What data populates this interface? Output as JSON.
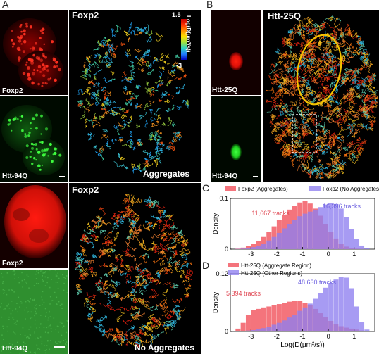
{
  "figure": {
    "panels": {
      "A": {
        "letter": "A",
        "top": {
          "small_top_label": "Foxp2",
          "small_bottom_label": "Htt-94Q",
          "track_title": "Foxp2",
          "condition_label": "Aggregates",
          "colorbar": {
            "max": "1.5",
            "min": "-3",
            "label": "Log(D(μm²/s))"
          }
        },
        "bottom": {
          "small_top_label": "Foxp2",
          "small_bottom_label": "Htt-94Q",
          "track_title": "Foxp2",
          "condition_label": "No Aggregates"
        }
      },
      "B": {
        "letter": "B",
        "small_top_label": "Htt-25Q",
        "small_bottom_label": "Htt-94Q",
        "track_title": "Htt-25Q"
      },
      "C": {
        "letter": "C"
      },
      "D": {
        "letter": "D"
      }
    },
    "colors": {
      "foxp2_red": "#e8201a",
      "htt_green": "#19d119",
      "hist_red": "#f4747c",
      "hist_blue": "#8e7ff0",
      "overlap_purple": "#7a3ea8",
      "ellipse_yellow": "#f5c400"
    }
  },
  "chart_data": [
    {
      "type": "bar",
      "panel": "C",
      "ylabel": "Density",
      "ylim": [
        0,
        0.1
      ],
      "yticks": [
        "0",
        "0.1"
      ],
      "x": [
        -3.5,
        -3.3,
        -3.1,
        -2.9,
        -2.7,
        -2.5,
        -2.3,
        -2.1,
        -1.9,
        -1.7,
        -1.5,
        -1.3,
        -1.1,
        -0.9,
        -0.7,
        -0.5,
        -0.3,
        -0.1,
        0.1,
        0.3,
        0.5,
        0.7,
        0.9,
        1.1,
        1.3,
        1.5
      ],
      "xlim": [
        -3.8,
        1.8
      ],
      "xticks": [
        "-3",
        "-2",
        "-1",
        "0",
        "1"
      ],
      "series": [
        {
          "name": "Foxp2 (Aggregates)",
          "annotation": "11,667 tracks",
          "color": "#f4747c",
          "values": [
            0.001,
            0.003,
            0.006,
            0.01,
            0.016,
            0.024,
            0.034,
            0.045,
            0.057,
            0.068,
            0.078,
            0.086,
            0.092,
            0.095,
            0.09,
            0.08,
            0.066,
            0.05,
            0.034,
            0.021,
            0.011,
            0.005,
            0.002,
            0.001,
            0.0005,
            0
          ]
        },
        {
          "name": "Foxp2 (No Aggregates)",
          "annotation": "16,396 tracks",
          "color": "#8e7ff0",
          "values": [
            0.0005,
            0.001,
            0.002,
            0.004,
            0.007,
            0.011,
            0.017,
            0.024,
            0.032,
            0.041,
            0.05,
            0.058,
            0.065,
            0.07,
            0.074,
            0.078,
            0.083,
            0.088,
            0.091,
            0.089,
            0.08,
            0.063,
            0.04,
            0.02,
            0.007,
            0.002
          ]
        }
      ]
    },
    {
      "type": "bar",
      "panel": "D",
      "ylabel": "Density",
      "xlabel": "Log(D(μm²/s))",
      "ylim": [
        0,
        0.12
      ],
      "yticks": [
        "0",
        "0.12"
      ],
      "x": [
        -3.5,
        -3.3,
        -3.1,
        -2.9,
        -2.7,
        -2.5,
        -2.3,
        -2.1,
        -1.9,
        -1.7,
        -1.5,
        -1.3,
        -1.1,
        -0.9,
        -0.7,
        -0.5,
        -0.3,
        -0.1,
        0.1,
        0.3,
        0.5,
        0.7,
        0.9,
        1.1,
        1.3,
        1.5
      ],
      "xlim": [
        -3.8,
        1.8
      ],
      "xticks": [
        "-3",
        "-2",
        "-1",
        "0",
        "1"
      ],
      "series": [
        {
          "name": "Htt-25Q (Aggregate Region)",
          "annotation": "5,394 tracks",
          "color": "#f4747c",
          "values": [
            0.006,
            0.018,
            0.035,
            0.045,
            0.047,
            0.05,
            0.052,
            0.055,
            0.057,
            0.06,
            0.062,
            0.063,
            0.063,
            0.06,
            0.055,
            0.047,
            0.038,
            0.03,
            0.022,
            0.016,
            0.011,
            0.008,
            0.006,
            0.004,
            0.002,
            0.001
          ]
        },
        {
          "name": "Htt-25Q (Other Regions)",
          "annotation": "48,630 tracks",
          "color": "#8e7ff0",
          "values": [
            0.0005,
            0.001,
            0.002,
            0.003,
            0.005,
            0.007,
            0.01,
            0.014,
            0.018,
            0.023,
            0.029,
            0.035,
            0.043,
            0.05,
            0.058,
            0.068,
            0.08,
            0.091,
            0.101,
            0.108,
            0.113,
            0.112,
            0.09,
            0.052,
            0.019,
            0.004
          ]
        }
      ]
    }
  ]
}
